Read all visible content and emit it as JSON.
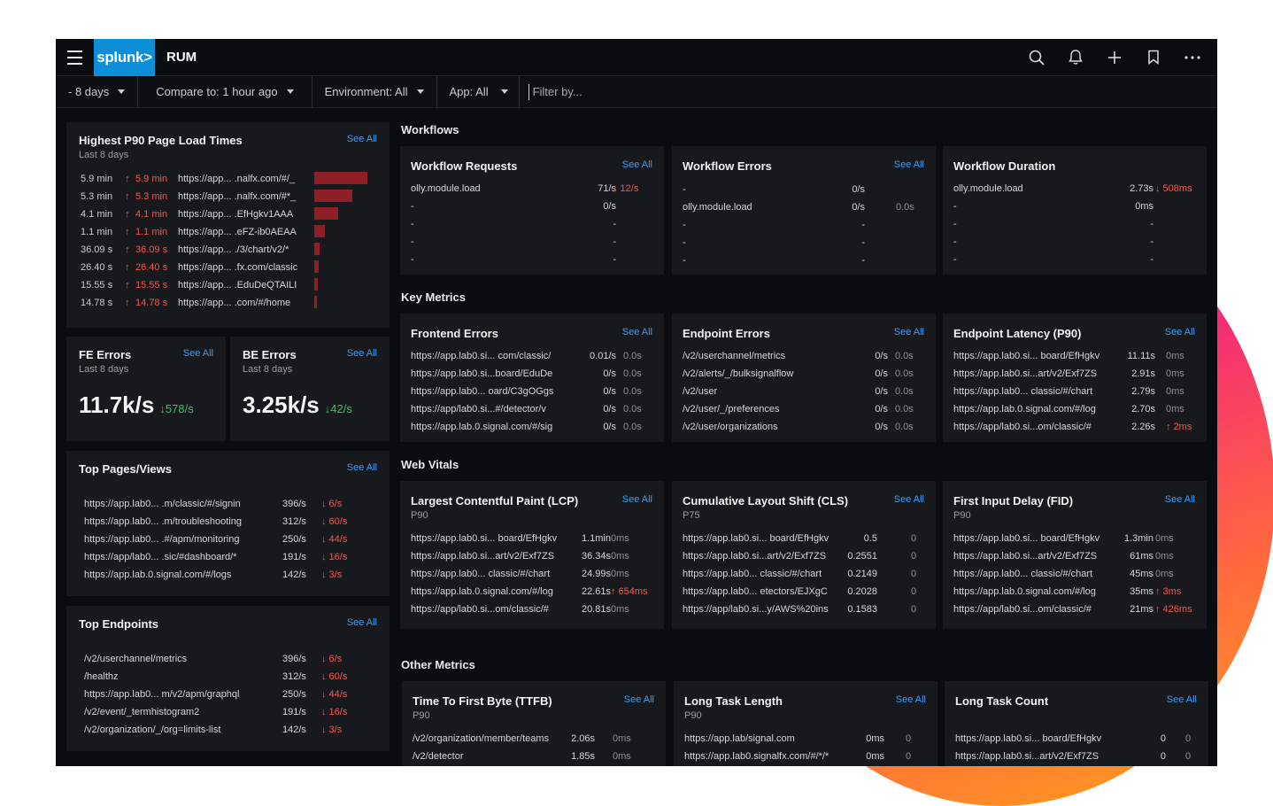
{
  "header": {
    "logo": "splunk>",
    "app_title": "RUM"
  },
  "filters": {
    "time": "- 8 days",
    "compare": "Compare to: 1 hour ago",
    "environment": "Environment: All",
    "app": "App: All",
    "filter_placeholder": "Filter by..."
  },
  "colors": {
    "accent": "#0d8ed6",
    "link": "#3d9df5",
    "up_red": "#f25a4f",
    "down_green": "#3fbf68",
    "bar": "#8f1f26"
  },
  "icons": [
    "search-icon",
    "bell-icon",
    "plus-icon",
    "bookmark-icon",
    "more-icon"
  ],
  "p90": {
    "title": "Highest P90 Page Load Times",
    "subtitle": "Last 8 days",
    "see_all": "See All",
    "rows": [
      {
        "value": "5.9 min",
        "delta": "5.9 min",
        "url": "https://app... .nalfx.com/#/_",
        "bar": 1.0
      },
      {
        "value": "5.3 min",
        "delta": "5.3 min",
        "url": "https://app... .nalfx.com/#*_",
        "bar": 0.72
      },
      {
        "value": "4.1 min",
        "delta": "4.1 min",
        "url": "https://app... .EfHgkv1AAA",
        "bar": 0.45
      },
      {
        "value": "1.1 min",
        "delta": "1.1 min",
        "url": "https://app... .eFZ-ib0AEAA",
        "bar": 0.2
      },
      {
        "value": "36.09 s",
        "delta": "36.09 s",
        "url": "https://app... ./3/chart/v2/*",
        "bar": 0.1
      },
      {
        "value": "26.40 s",
        "delta": "26.40 s",
        "url": "https://app... .fx.com/classic",
        "bar": 0.08
      },
      {
        "value": "15.55 s",
        "delta": "15.55 s",
        "url": "https://app... .EduDeQTAILI",
        "bar": 0.06
      },
      {
        "value": "14.78 s",
        "delta": "14.78 s",
        "url": "https://app... .com/#/home",
        "bar": 0.05
      }
    ]
  },
  "fe_errors": {
    "title": "FE Errors",
    "subtitle": "Last 8 days",
    "see_all": "See All",
    "value": "11.7k/s",
    "delta": "↓578/s"
  },
  "be_errors": {
    "title": "BE Errors",
    "subtitle": "Last 8 days",
    "see_all": "See All",
    "value": "3.25k/s",
    "delta": "↓42/s"
  },
  "top_pages": {
    "title": "Top Pages/Views",
    "see_all": "See All",
    "rows": [
      {
        "url": "https://app.lab0... .m/classic/#/signin",
        "rate": "396/s",
        "delta": "↓ 6/s"
      },
      {
        "url": "https://app.lab0... .m/troubleshooting",
        "rate": "312/s",
        "delta": "↓ 60/s"
      },
      {
        "url": "https://app.lab0... .#/apm/monitoring",
        "rate": "250/s",
        "delta": "↓ 44/s"
      },
      {
        "url": "https://app/lab0... .sic/#dashboard/*",
        "rate": "191/s",
        "delta": "↓ 16/s"
      },
      {
        "url": "https://app.lab.0.signal.com/#/logs",
        "rate": "142/s",
        "delta": "↓ 3/s"
      }
    ]
  },
  "top_endpoints": {
    "title": "Top Endpoints",
    "see_all": "See All",
    "rows": [
      {
        "url": "/v2/userchannel/metrics",
        "rate": "396/s",
        "delta": "↓ 6/s"
      },
      {
        "url": "/healthz",
        "rate": "312/s",
        "delta": "↓ 60/s"
      },
      {
        "url": "https://app.lab0... m/v2/apm/graphql",
        "rate": "250/s",
        "delta": "↓ 44/s"
      },
      {
        "url": "/v2/event/_termhistogram2",
        "rate": "191/s",
        "delta": "↓ 16/s"
      },
      {
        "url": "/v2/organization/_/org=limits-list",
        "rate": "142/s",
        "delta": "↓ 3/s"
      }
    ]
  },
  "sections": {
    "workflows": "Workflows",
    "key_metrics": "Key Metrics",
    "web_vitals": "Web Vitals",
    "other_metrics": "Other Metrics"
  },
  "workflow_requests": {
    "title": "Workflow Requests",
    "see_all": "See All",
    "rows": [
      {
        "name": "olly.module.load",
        "val": "71/s",
        "delta": "↓ 12/s"
      },
      {
        "name": "-",
        "val": "0/s",
        "delta": ""
      },
      {
        "name": "-",
        "val": "-",
        "delta": ""
      },
      {
        "name": "-",
        "val": "-",
        "delta": ""
      },
      {
        "name": "-",
        "val": "-",
        "delta": ""
      }
    ]
  },
  "workflow_errors": {
    "title": "Workflow Errors",
    "see_all": "See All",
    "rows": [
      {
        "name": "-",
        "val": "0/s",
        "delta": ""
      },
      {
        "name": "olly.module.load",
        "val": "0/s",
        "delta": "0.0s"
      },
      {
        "name": "-",
        "val": "-",
        "delta": ""
      },
      {
        "name": "-",
        "val": "-",
        "delta": ""
      },
      {
        "name": "-",
        "val": "-",
        "delta": ""
      }
    ]
  },
  "workflow_duration": {
    "title": "Workflow Duration",
    "rows": [
      {
        "name": "olly.module.load",
        "val": "2.73s",
        "delta": "↓ 508ms"
      },
      {
        "name": "-",
        "val": "0ms",
        "delta": ""
      },
      {
        "name": "-",
        "val": "-",
        "delta": ""
      },
      {
        "name": "-",
        "val": "-",
        "delta": ""
      },
      {
        "name": "-",
        "val": "-",
        "delta": ""
      }
    ]
  },
  "frontend_errors": {
    "title": "Frontend Errors",
    "see_all": "See All",
    "rows": [
      {
        "name": "https://app.lab0.si... com/classic/",
        "val": "0.01/s",
        "delta": "0.0s"
      },
      {
        "name": "https://app.lab0.si...board/EduDe",
        "val": "0/s",
        "delta": "0.0s"
      },
      {
        "name": "https://app.lab0... oard/C3gOGgs",
        "val": "0/s",
        "delta": "0.0s"
      },
      {
        "name": "https://app/lab0.si...#/detector/v",
        "val": "0/s",
        "delta": "0.0s"
      },
      {
        "name": "https://app.lab.0.signal.com/#/sig",
        "val": "0/s",
        "delta": "0.0s"
      }
    ]
  },
  "endpoint_errors": {
    "title": "Endpoint Errors",
    "see_all": "See All",
    "rows": [
      {
        "name": "/v2/userchannel/metrics",
        "val": "0/s",
        "delta": "0.0s"
      },
      {
        "name": "/v2/alerts/_/bulksignalflow",
        "val": "0/s",
        "delta": "0.0s"
      },
      {
        "name": "/v2/user",
        "val": "0/s",
        "delta": "0.0s"
      },
      {
        "name": "/v2/user/_/preferences",
        "val": "0/s",
        "delta": "0.0s"
      },
      {
        "name": "/v2/user/organizations",
        "val": "0/s",
        "delta": "0.0s"
      }
    ]
  },
  "endpoint_latency": {
    "title": "Endpoint Latency (P90)",
    "see_all": "See All",
    "rows": [
      {
        "name": "https://app.lab0.si... board/EfHgkv",
        "val": "11.11s",
        "delta": "0ms"
      },
      {
        "name": "https://app.lab0.si...art/v2/Exf7ZS",
        "val": "2.91s",
        "delta": "0ms"
      },
      {
        "name": "https://app.lab0... classic/#/chart",
        "val": "2.79s",
        "delta": "0ms"
      },
      {
        "name": "https://app.lab.0.signal.com/#/log",
        "val": "2.70s",
        "delta": "0ms"
      },
      {
        "name": "https://app/lab0.si...om/classic/#",
        "val": "2.26s",
        "delta": "↑ 2ms"
      }
    ]
  },
  "lcp": {
    "title": "Largest Contentful Paint (LCP)",
    "sub": "P90",
    "see_all": "See All",
    "rows": [
      {
        "name": "https://app.lab0.si... board/EfHgkv",
        "val": "1.1min",
        "delta": "0ms"
      },
      {
        "name": "https://app.lab0.si...art/v2/Exf7ZS",
        "val": "36.34s",
        "delta": "0ms"
      },
      {
        "name": "https://app.lab0... classic/#/chart",
        "val": "24.99s",
        "delta": "0ms"
      },
      {
        "name": "https://app.lab.0.signal.com/#/log",
        "val": "22.61s",
        "delta": "↑ 654ms"
      },
      {
        "name": "https://app/lab0.si...om/classic/#",
        "val": "20.81s",
        "delta": "0ms"
      }
    ]
  },
  "cls": {
    "title": "Cumulative Layout Shift (CLS)",
    "sub": "P75",
    "see_all": "See All",
    "rows": [
      {
        "name": "https://app.lab0.si... board/EfHgkv",
        "val": "0.5",
        "delta": "0"
      },
      {
        "name": "https://app.lab0.si...art/v2/Exf7ZS",
        "val": "0.2551",
        "delta": "0"
      },
      {
        "name": "https://app.lab0... classic/#/chart",
        "val": "0.2149",
        "delta": "0"
      },
      {
        "name": "https://app.lab0... etectors/EJXgC",
        "val": "0.2028",
        "delta": "0"
      },
      {
        "name": "https://app/lab0.si...y/AWS%20ins",
        "val": "0.1583",
        "delta": "0"
      }
    ]
  },
  "fid": {
    "title": "First Input Delay (FID)",
    "sub": "P90",
    "see_all": "See All",
    "rows": [
      {
        "name": "https://app.lab0.si... board/EfHgkv",
        "val": "1.3min",
        "delta": "0ms"
      },
      {
        "name": "https://app.lab0.si...art/v2/Exf7ZS",
        "val": "61ms",
        "delta": "0ms"
      },
      {
        "name": "https://app.lab0... classic/#/chart",
        "val": "45ms",
        "delta": "0ms"
      },
      {
        "name": "https://app.lab.0.signal.com/#/log",
        "val": "35ms",
        "delta": "↑ 3ms"
      },
      {
        "name": "https://app/lab0.si...om/classic/#",
        "val": "21ms",
        "delta": "↑ 426ms"
      }
    ]
  },
  "ttfb": {
    "title": "Time To First Byte (TTFB)",
    "sub": "P90",
    "see_all": "See All",
    "rows": [
      {
        "name": "/v2/organization/member/teams",
        "val": "2.06s",
        "delta": "0ms"
      },
      {
        "name": "/v2/detector",
        "val": "1.85s",
        "delta": "0ms"
      }
    ]
  },
  "long_task_length": {
    "title": "Long Task Length",
    "sub": "P90",
    "see_all": "See All",
    "rows": [
      {
        "name": "https://app.lab/signal.com",
        "val": "0ms",
        "delta": "0"
      },
      {
        "name": "https://app.lab0.signalfx.com/#/*/*",
        "val": "0ms",
        "delta": "0"
      }
    ]
  },
  "long_task_count": {
    "title": "Long Task Count",
    "see_all": "See All",
    "rows": [
      {
        "name": "https://app.lab0.si... board/EfHgkv",
        "val": "0",
        "delta": "0"
      },
      {
        "name": "https://app.lab0.si...art/v2/Exf7ZS",
        "val": "0",
        "delta": "0"
      }
    ]
  }
}
